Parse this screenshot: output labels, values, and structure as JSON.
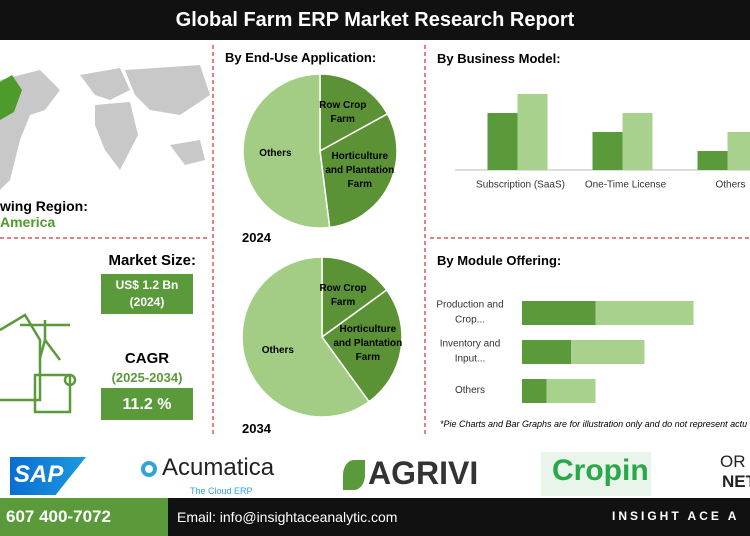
{
  "header": {
    "title": "Global Farm ERP Market Research Report"
  },
  "region": {
    "label": "wing Region:",
    "value": "America"
  },
  "market_size": {
    "label": "Market Size:",
    "value": "US$ 1.2 Bn",
    "year": "(2024)"
  },
  "cagr": {
    "label": "CAGR",
    "period": "(2025-2034)",
    "value": "11.2 %"
  },
  "chart_data": [
    {
      "type": "pie",
      "title": "By End-Use Application:",
      "year": "2024",
      "categories": [
        "Row Crop Farm",
        "Horticulture and Plantation Farm",
        "Others"
      ],
      "values": [
        17,
        31,
        52
      ],
      "colors": [
        "#5b9236",
        "#5b9236",
        "#a3cc84"
      ]
    },
    {
      "type": "pie",
      "year": "2034",
      "categories": [
        "Row Crop Farm",
        "Horticulture and Plantation Farm",
        "Others"
      ],
      "values": [
        15,
        25,
        60
      ],
      "colors": [
        "#5b9236",
        "#5b9236",
        "#a3cc84"
      ]
    },
    {
      "type": "bar",
      "title": "By Business Model:",
      "categories": [
        "Subscription (SaaS)",
        "One-Time License",
        "Others"
      ],
      "series": [
        {
          "color": "#5b9a3a",
          "values": [
            60,
            40,
            20
          ]
        },
        {
          "color": "#a9d18e",
          "values": [
            80,
            60,
            40
          ]
        }
      ],
      "ylim": [
        0,
        100
      ]
    },
    {
      "type": "stacked_barh",
      "title": "By Module Offering:",
      "categories": [
        "Production and Crop...",
        "Inventory and Input...",
        "Others"
      ],
      "series": [
        {
          "color": "#5b9a3a",
          "values": [
            30,
            20,
            10
          ]
        },
        {
          "color": "#a9d18e",
          "values": [
            40,
            30,
            20
          ]
        }
      ],
      "xlim": [
        0,
        100
      ]
    }
  ],
  "note": "*Pie Charts and Bar Graphs are for illustration only and do not represent actu",
  "logos": [
    "SAP",
    "Acumatica",
    "The Cloud ERP",
    "AGRIVI",
    "Cropin",
    "OR",
    "NET"
  ],
  "footer": {
    "phone": "607 400-7072",
    "email": "Email: info@insightaceanalytic.com",
    "brand": "INSIGHT ACE A"
  }
}
